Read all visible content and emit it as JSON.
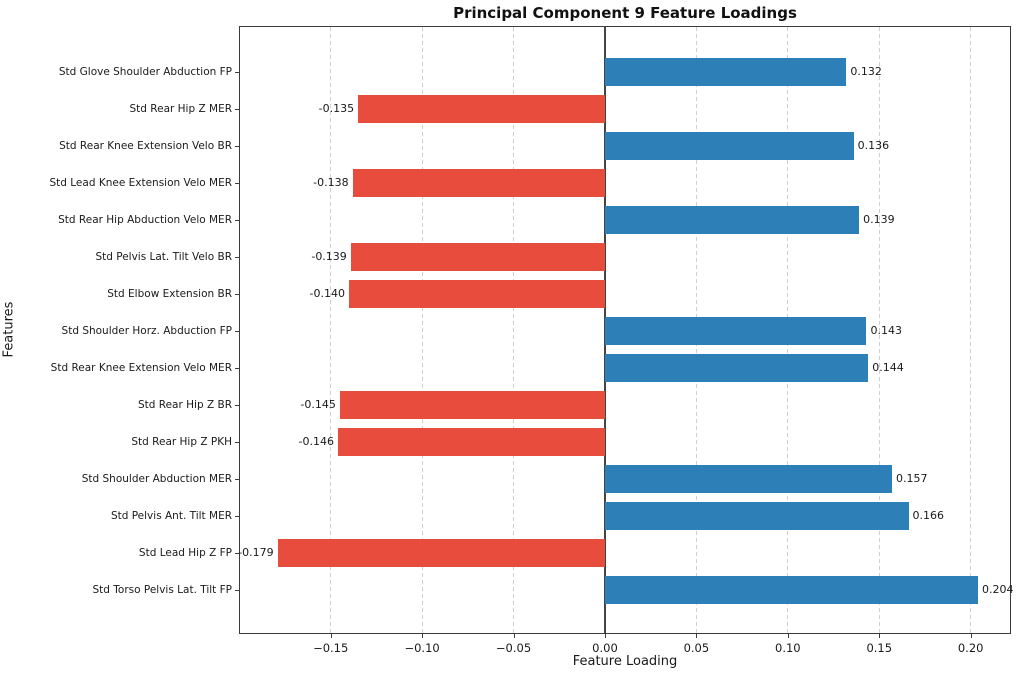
{
  "title": "Principal Component 9 Feature Loadings",
  "chart_data": {
    "type": "bar",
    "orientation": "horizontal",
    "title": "Principal Component 9 Feature Loadings",
    "xlabel": "Feature Loading",
    "ylabel": "Features",
    "xlim": [
      -0.1996,
      0.2215
    ],
    "xticks": [
      -0.15,
      -0.1,
      -0.05,
      0.0,
      0.05,
      0.1,
      0.15,
      0.2
    ],
    "xtick_labels": [
      "−0.15",
      "−0.10",
      "−0.05",
      "0.00",
      "0.05",
      "0.10",
      "0.15",
      "0.20"
    ],
    "grid": "vertical-dashed",
    "zero_line": true,
    "legend": "none",
    "categories": [
      "Std Glove Shoulder Abduction FP",
      "Std Rear Hip Z MER",
      "Std Rear Knee Extension Velo BR",
      "Std Lead Knee Extension Velo MER",
      "Std Rear Hip Abduction Velo MER",
      "Std Pelvis Lat. Tilt Velo BR",
      "Std Elbow Extension BR",
      "Std Shoulder Horz. Abduction FP",
      "Std Rear Knee Extension Velo MER",
      "Std Rear Hip Z BR",
      "Std Rear Hip Z PKH",
      "Std Shoulder Abduction MER",
      "Std Pelvis Ant. Tilt MER",
      "Std Lead Hip Z FP",
      "Std Torso Pelvis Lat. Tilt FP"
    ],
    "values": [
      0.132,
      -0.135,
      0.136,
      -0.138,
      0.139,
      -0.139,
      -0.14,
      0.143,
      0.144,
      -0.145,
      -0.146,
      0.157,
      0.166,
      -0.179,
      0.204
    ],
    "value_labels": [
      "0.132",
      "-0.135",
      "0.136",
      "-0.138",
      "0.139",
      "-0.139",
      "-0.140",
      "0.143",
      "0.144",
      "-0.145",
      "-0.146",
      "0.157",
      "0.166",
      "-0.179",
      "0.204"
    ],
    "positive_color": "#2d7fb8",
    "negative_color": "#e74c3c"
  }
}
